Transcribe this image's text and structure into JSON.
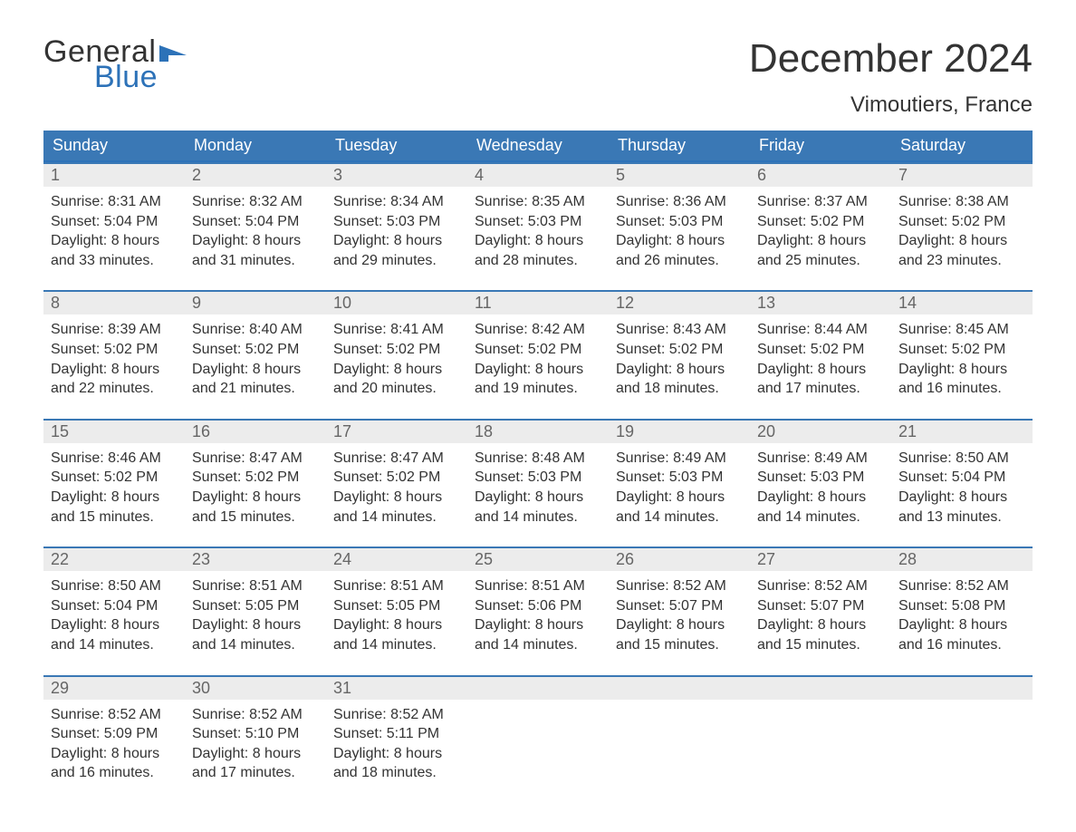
{
  "logo": {
    "text_general": "General",
    "text_blue": "Blue",
    "flag_color": "#2d72b8"
  },
  "month_title": "December 2024",
  "location": "Vimoutiers, France",
  "colors": {
    "header_bg": "#3a78b5",
    "header_text": "#ffffff",
    "daynum_bg": "#ececec",
    "daynum_text": "#666666",
    "accent_border": "#3a78b5",
    "body_text": "#333333",
    "page_bg": "#ffffff"
  },
  "typography": {
    "month_title_fontsize": 44,
    "location_fontsize": 24,
    "weekday_fontsize": 18,
    "daynum_fontsize": 18,
    "body_fontsize": 16,
    "font_family": "Arial"
  },
  "layout": {
    "columns": 7,
    "rows": 5,
    "cell_border_top_width": 2
  },
  "weekdays": [
    "Sunday",
    "Monday",
    "Tuesday",
    "Wednesday",
    "Thursday",
    "Friday",
    "Saturday"
  ],
  "days": [
    {
      "n": "1",
      "sunrise": "Sunrise: 8:31 AM",
      "sunset": "Sunset: 5:04 PM",
      "daylight": "Daylight: 8 hours and 33 minutes."
    },
    {
      "n": "2",
      "sunrise": "Sunrise: 8:32 AM",
      "sunset": "Sunset: 5:04 PM",
      "daylight": "Daylight: 8 hours and 31 minutes."
    },
    {
      "n": "3",
      "sunrise": "Sunrise: 8:34 AM",
      "sunset": "Sunset: 5:03 PM",
      "daylight": "Daylight: 8 hours and 29 minutes."
    },
    {
      "n": "4",
      "sunrise": "Sunrise: 8:35 AM",
      "sunset": "Sunset: 5:03 PM",
      "daylight": "Daylight: 8 hours and 28 minutes."
    },
    {
      "n": "5",
      "sunrise": "Sunrise: 8:36 AM",
      "sunset": "Sunset: 5:03 PM",
      "daylight": "Daylight: 8 hours and 26 minutes."
    },
    {
      "n": "6",
      "sunrise": "Sunrise: 8:37 AM",
      "sunset": "Sunset: 5:02 PM",
      "daylight": "Daylight: 8 hours and 25 minutes."
    },
    {
      "n": "7",
      "sunrise": "Sunrise: 8:38 AM",
      "sunset": "Sunset: 5:02 PM",
      "daylight": "Daylight: 8 hours and 23 minutes."
    },
    {
      "n": "8",
      "sunrise": "Sunrise: 8:39 AM",
      "sunset": "Sunset: 5:02 PM",
      "daylight": "Daylight: 8 hours and 22 minutes."
    },
    {
      "n": "9",
      "sunrise": "Sunrise: 8:40 AM",
      "sunset": "Sunset: 5:02 PM",
      "daylight": "Daylight: 8 hours and 21 minutes."
    },
    {
      "n": "10",
      "sunrise": "Sunrise: 8:41 AM",
      "sunset": "Sunset: 5:02 PM",
      "daylight": "Daylight: 8 hours and 20 minutes."
    },
    {
      "n": "11",
      "sunrise": "Sunrise: 8:42 AM",
      "sunset": "Sunset: 5:02 PM",
      "daylight": "Daylight: 8 hours and 19 minutes."
    },
    {
      "n": "12",
      "sunrise": "Sunrise: 8:43 AM",
      "sunset": "Sunset: 5:02 PM",
      "daylight": "Daylight: 8 hours and 18 minutes."
    },
    {
      "n": "13",
      "sunrise": "Sunrise: 8:44 AM",
      "sunset": "Sunset: 5:02 PM",
      "daylight": "Daylight: 8 hours and 17 minutes."
    },
    {
      "n": "14",
      "sunrise": "Sunrise: 8:45 AM",
      "sunset": "Sunset: 5:02 PM",
      "daylight": "Daylight: 8 hours and 16 minutes."
    },
    {
      "n": "15",
      "sunrise": "Sunrise: 8:46 AM",
      "sunset": "Sunset: 5:02 PM",
      "daylight": "Daylight: 8 hours and 15 minutes."
    },
    {
      "n": "16",
      "sunrise": "Sunrise: 8:47 AM",
      "sunset": "Sunset: 5:02 PM",
      "daylight": "Daylight: 8 hours and 15 minutes."
    },
    {
      "n": "17",
      "sunrise": "Sunrise: 8:47 AM",
      "sunset": "Sunset: 5:02 PM",
      "daylight": "Daylight: 8 hours and 14 minutes."
    },
    {
      "n": "18",
      "sunrise": "Sunrise: 8:48 AM",
      "sunset": "Sunset: 5:03 PM",
      "daylight": "Daylight: 8 hours and 14 minutes."
    },
    {
      "n": "19",
      "sunrise": "Sunrise: 8:49 AM",
      "sunset": "Sunset: 5:03 PM",
      "daylight": "Daylight: 8 hours and 14 minutes."
    },
    {
      "n": "20",
      "sunrise": "Sunrise: 8:49 AM",
      "sunset": "Sunset: 5:03 PM",
      "daylight": "Daylight: 8 hours and 14 minutes."
    },
    {
      "n": "21",
      "sunrise": "Sunrise: 8:50 AM",
      "sunset": "Sunset: 5:04 PM",
      "daylight": "Daylight: 8 hours and 13 minutes."
    },
    {
      "n": "22",
      "sunrise": "Sunrise: 8:50 AM",
      "sunset": "Sunset: 5:04 PM",
      "daylight": "Daylight: 8 hours and 14 minutes."
    },
    {
      "n": "23",
      "sunrise": "Sunrise: 8:51 AM",
      "sunset": "Sunset: 5:05 PM",
      "daylight": "Daylight: 8 hours and 14 minutes."
    },
    {
      "n": "24",
      "sunrise": "Sunrise: 8:51 AM",
      "sunset": "Sunset: 5:05 PM",
      "daylight": "Daylight: 8 hours and 14 minutes."
    },
    {
      "n": "25",
      "sunrise": "Sunrise: 8:51 AM",
      "sunset": "Sunset: 5:06 PM",
      "daylight": "Daylight: 8 hours and 14 minutes."
    },
    {
      "n": "26",
      "sunrise": "Sunrise: 8:52 AM",
      "sunset": "Sunset: 5:07 PM",
      "daylight": "Daylight: 8 hours and 15 minutes."
    },
    {
      "n": "27",
      "sunrise": "Sunrise: 8:52 AM",
      "sunset": "Sunset: 5:07 PM",
      "daylight": "Daylight: 8 hours and 15 minutes."
    },
    {
      "n": "28",
      "sunrise": "Sunrise: 8:52 AM",
      "sunset": "Sunset: 5:08 PM",
      "daylight": "Daylight: 8 hours and 16 minutes."
    },
    {
      "n": "29",
      "sunrise": "Sunrise: 8:52 AM",
      "sunset": "Sunset: 5:09 PM",
      "daylight": "Daylight: 8 hours and 16 minutes."
    },
    {
      "n": "30",
      "sunrise": "Sunrise: 8:52 AM",
      "sunset": "Sunset: 5:10 PM",
      "daylight": "Daylight: 8 hours and 17 minutes."
    },
    {
      "n": "31",
      "sunrise": "Sunrise: 8:52 AM",
      "sunset": "Sunset: 5:11 PM",
      "daylight": "Daylight: 8 hours and 18 minutes."
    }
  ],
  "trailing_empty": 4
}
